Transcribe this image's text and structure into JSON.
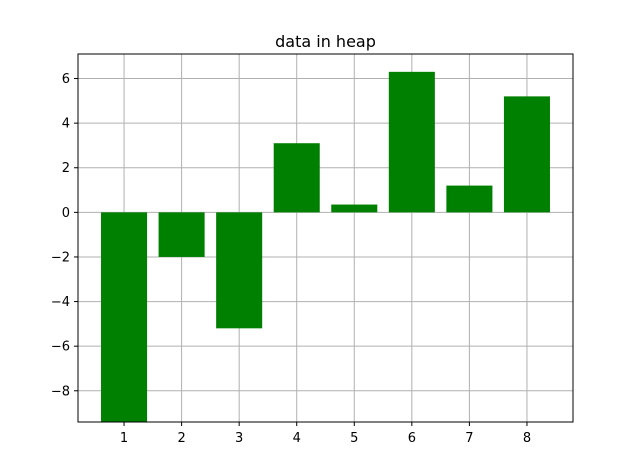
{
  "chart_data": {
    "type": "bar",
    "title": "data in heap",
    "xlabel": "",
    "ylabel": "",
    "categories": [
      "1",
      "2",
      "3",
      "4",
      "5",
      "6",
      "7",
      "8"
    ],
    "values": [
      -9.4,
      -2.0,
      -5.2,
      3.1,
      0.35,
      6.3,
      1.2,
      5.2
    ],
    "ylim": [
      -9.4,
      7.1
    ],
    "xlim": [
      0.2,
      8.8
    ],
    "yticks": [
      "−8",
      "−6",
      "−4",
      "−2",
      "0",
      "2",
      "4",
      "6"
    ],
    "ytick_values": [
      -8,
      -6,
      -4,
      -2,
      0,
      2,
      4,
      6
    ],
    "grid": true,
    "bar_color": "#008000",
    "grid_color": "#b0b0b0"
  }
}
